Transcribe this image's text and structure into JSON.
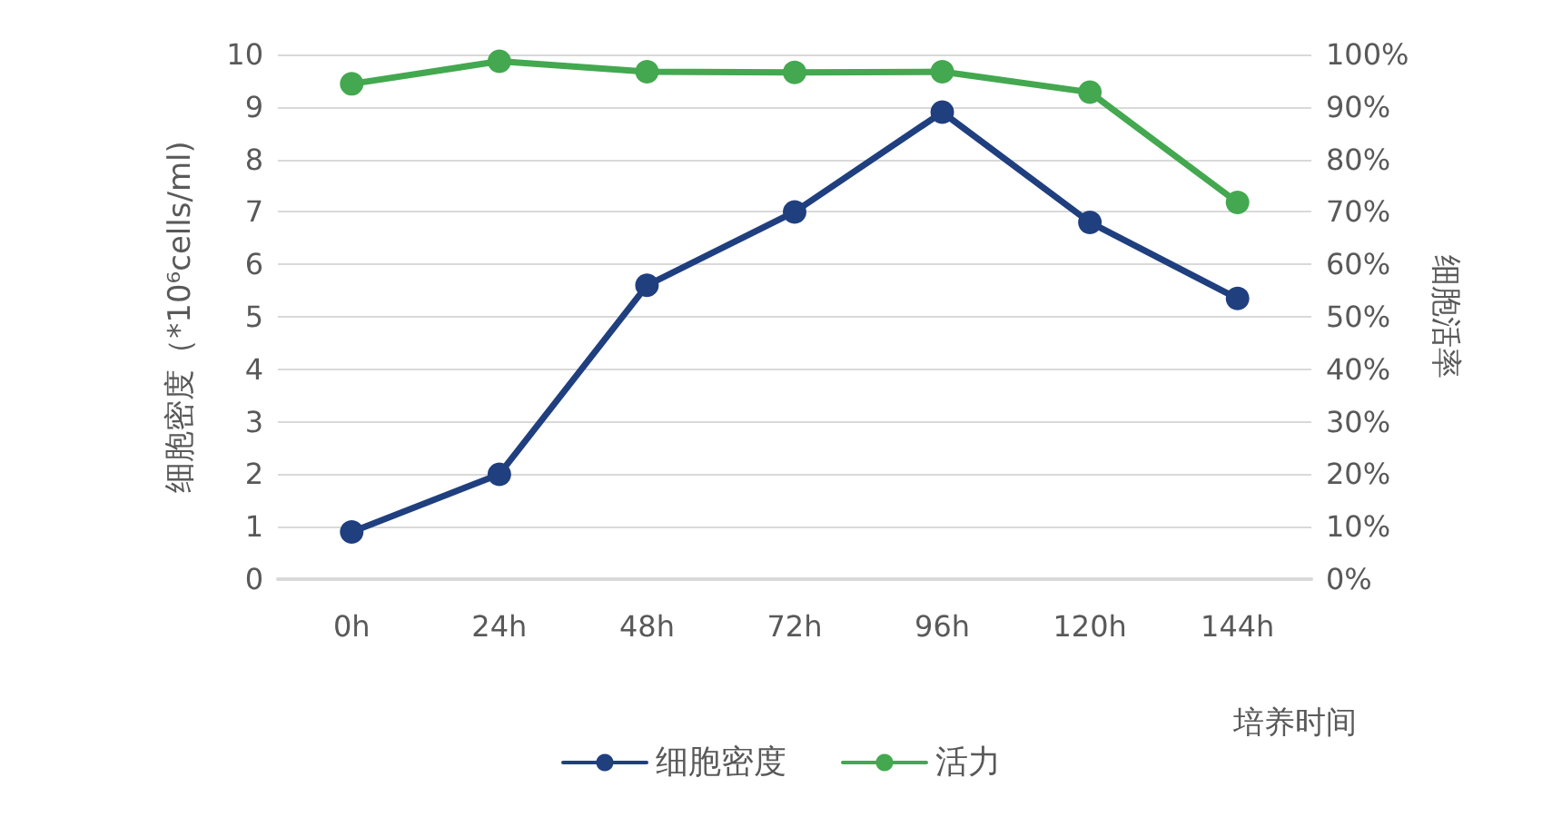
{
  "chart_data": {
    "type": "line",
    "xlabel": "培养时间",
    "ylabel": "细胞密度（*10⁶cells/ml)",
    "y2label": "细胞活率",
    "categories": [
      "0h",
      "24h",
      "48h",
      "72h",
      "96h",
      "120h",
      "144h"
    ],
    "series": [
      {
        "name": "细胞密度",
        "color": "#1f3f7f",
        "values": [
          0.9,
          2.0,
          5.6,
          7.0,
          8.9,
          6.8,
          5.35
        ]
      },
      {
        "name": "活力",
        "color": "#43a84f",
        "axis": "y2",
        "values": [
          94.4,
          98.7,
          96.7,
          96.6,
          96.7,
          92.8,
          71.8
        ]
      }
    ],
    "ylim": [
      0,
      10
    ],
    "yticks": [
      0,
      1,
      2,
      3,
      4,
      5,
      6,
      7,
      8,
      9,
      10
    ],
    "y2lim": [
      0,
      100
    ],
    "y2ticks": [
      {
        "value": 0,
        "label": "0%"
      },
      {
        "value": 10,
        "label": "10%"
      },
      {
        "value": 20,
        "label": "20%"
      },
      {
        "value": 30,
        "label": "30%"
      },
      {
        "value": 40,
        "label": "40%"
      },
      {
        "value": 50,
        "label": "50%"
      },
      {
        "value": 60,
        "label": "60%"
      },
      {
        "value": 70,
        "label": "70%"
      },
      {
        "value": 80,
        "label": "80%"
      },
      {
        "value": 90,
        "label": "90%"
      },
      {
        "value": 100,
        "label": "100%"
      }
    ],
    "grid": "y",
    "legend": "bottom",
    "marker": "circle",
    "line_style": "solid"
  }
}
